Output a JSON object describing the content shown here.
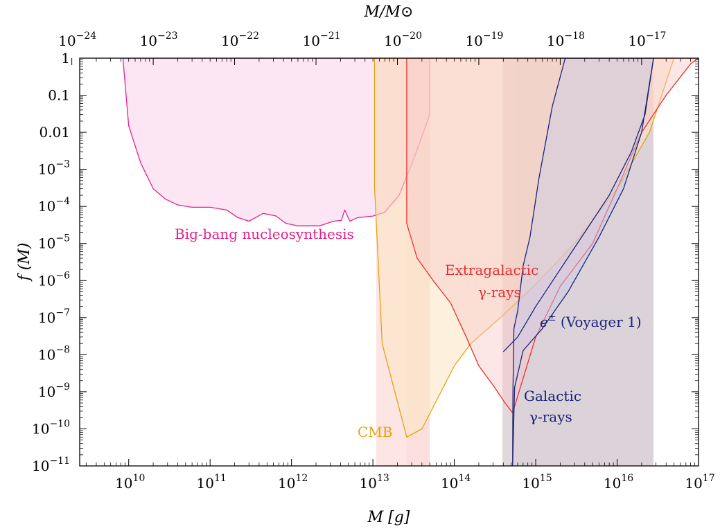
{
  "chart_data": {
    "type": "area",
    "title": "",
    "xlabel": "M [g]",
    "top_xlabel": "M/M⊙",
    "ylabel": "f (M)",
    "x_scale": "log",
    "y_scale": "log",
    "xlim": [
      2500000000.0,
      1e+17
    ],
    "ylim": [
      1e-11,
      1
    ],
    "grid": false,
    "x_ticks": [
      {
        "value": 10000000000.0,
        "base": "10",
        "exp": "10"
      },
      {
        "value": 100000000000.0,
        "base": "10",
        "exp": "11"
      },
      {
        "value": 1000000000000.0,
        "base": "10",
        "exp": "12"
      },
      {
        "value": 10000000000000.0,
        "base": "10",
        "exp": "13"
      },
      {
        "value": 100000000000000.0,
        "base": "10",
        "exp": "14"
      },
      {
        "value": 1000000000000000.0,
        "base": "10",
        "exp": "15"
      },
      {
        "value": 1e+16,
        "base": "10",
        "exp": "16"
      },
      {
        "value": 1e+17,
        "base": "10",
        "exp": "17"
      }
    ],
    "top_ticks": [
      {
        "value": 2000000000.0,
        "base": "10",
        "exp": "−24"
      },
      {
        "value": 20000000000.0,
        "base": "10",
        "exp": "−23"
      },
      {
        "value": 200000000000.0,
        "base": "10",
        "exp": "−22"
      },
      {
        "value": 2000000000000.0,
        "base": "10",
        "exp": "−21"
      },
      {
        "value": 20000000000000.0,
        "base": "10",
        "exp": "−20"
      },
      {
        "value": 200000000000000.0,
        "base": "10",
        "exp": "−19"
      },
      {
        "value": 2000000000000000.0,
        "base": "10",
        "exp": "−18"
      },
      {
        "value": 2e+16,
        "base": "10",
        "exp": "−17"
      }
    ],
    "y_ticks": [
      {
        "value": 1,
        "base": "1",
        "exp": ""
      },
      {
        "value": 0.1,
        "base": "0.1",
        "exp": ""
      },
      {
        "value": 0.01,
        "base": "0.01",
        "exp": ""
      },
      {
        "value": 0.001,
        "base": "10",
        "exp": "−3"
      },
      {
        "value": 0.0001,
        "base": "10",
        "exp": "−4"
      },
      {
        "value": 1e-05,
        "base": "10",
        "exp": "−5"
      },
      {
        "value": 1e-06,
        "base": "10",
        "exp": "−6"
      },
      {
        "value": 1e-07,
        "base": "10",
        "exp": "−7"
      },
      {
        "value": 1e-08,
        "base": "10",
        "exp": "−8"
      },
      {
        "value": 1e-09,
        "base": "10",
        "exp": "−9"
      },
      {
        "value": 1e-10,
        "base": "10",
        "exp": "−10"
      },
      {
        "value": 1e-11,
        "base": "10",
        "exp": "−11"
      }
    ],
    "bands": [
      {
        "x": [
          11000000000000.0,
          26000000000000.0
        ],
        "fill": "#f4a8a0",
        "opacity": 0.3
      },
      {
        "x": [
          26000000000000.0,
          50000000000000.0
        ],
        "fill": "#ee8c82",
        "opacity": 0.28
      },
      {
        "x": [
          390000000000000.0,
          530000000000000.0
        ],
        "fill": "#b89ea0",
        "opacity": 0.4
      },
      {
        "x": [
          530000000000000.0,
          2.8e+16
        ],
        "fill": "#8a6a82",
        "opacity": 0.3
      }
    ],
    "series": [
      {
        "name": "Big-bang nucleosynthesis",
        "color": "#e8208a",
        "fill": "#f9b8e0",
        "fill_opacity": 0.35,
        "points": [
          [
            8500000000.0,
            1
          ],
          [
            10000000000.0,
            0.015
          ],
          [
            14000000000.0,
            0.0015
          ],
          [
            20000000000.0,
            0.0003
          ],
          [
            28000000000.0,
            0.00016
          ],
          [
            40000000000.0,
            0.00011
          ],
          [
            60000000000.0,
            9.5e-05
          ],
          [
            100000000000.0,
            9.5e-05
          ],
          [
            160000000000.0,
            8e-05
          ],
          [
            220000000000.0,
            5e-05
          ],
          [
            300000000000.0,
            4e-05
          ],
          [
            450000000000.0,
            6.5e-05
          ],
          [
            650000000000.0,
            5.5e-05
          ],
          [
            850000000000.0,
            3.5e-05
          ],
          [
            1200000000000.0,
            3e-05
          ],
          [
            2200000000000.0,
            3e-05
          ],
          [
            3300000000000.0,
            4e-05
          ],
          [
            4100000000000.0,
            4.2e-05
          ],
          [
            4500000000000.0,
            8e-05
          ],
          [
            5200000000000.0,
            4e-05
          ],
          [
            6500000000000.0,
            5e-05
          ],
          [
            10000000000000.0,
            5.5e-05
          ],
          [
            14000000000000.0,
            7e-05
          ],
          [
            21000000000000.0,
            0.0002
          ],
          [
            32000000000000.0,
            0.002
          ],
          [
            50000000000000.0,
            0.03
          ],
          [
            50000000000000.0,
            1
          ],
          [
            8500000000.0,
            1
          ]
        ]
      },
      {
        "name": "CMB",
        "color": "#e8a010",
        "fill": "#fbe6c2",
        "fill_opacity": 0.55,
        "points": [
          [
            10500000000000.0,
            0.0003
          ],
          [
            13000000000000.0,
            2e-08
          ],
          [
            26000000000000.0,
            6e-11
          ],
          [
            40000000000000.0,
            1e-10
          ],
          [
            100000000000000.0,
            5e-09
          ],
          [
            160000000000000.0,
            2e-08
          ],
          [
            350000000000000.0,
            9e-08
          ],
          [
            1000000000000000.0,
            8e-07
          ],
          [
            3000000000000000.0,
            1e-05
          ],
          [
            1e+16,
            0.0003
          ],
          [
            2.5e+16,
            0.01
          ],
          [
            5e+16,
            1
          ],
          [
            10500000000000.0,
            1
          ]
        ]
      },
      {
        "name": "Extragalactic γ-rays",
        "color": "#e83030",
        "fill": "#f8c8c8",
        "fill_opacity": 0.45,
        "points": [
          [
            26000000000000.0,
            3.5e-05
          ],
          [
            35000000000000.0,
            4e-06
          ],
          [
            55000000000000.0,
            1e-06
          ],
          [
            90000000000000.0,
            2.5e-07
          ],
          [
            140000000000000.0,
            3e-08
          ],
          [
            200000000000000.0,
            5e-09
          ],
          [
            300000000000000.0,
            1.5e-09
          ],
          [
            420000000000000.0,
            5e-10
          ],
          [
            520000000000000.0,
            2.7e-10
          ],
          [
            1000000000000000.0,
            3e-08
          ],
          [
            2000000000000000.0,
            7e-07
          ],
          [
            5000000000000000.0,
            1e-05
          ],
          [
            1e+16,
            0.0003
          ],
          [
            2e+16,
            0.01
          ],
          [
            4e+16,
            0.1
          ],
          [
            8e+16,
            0.7
          ],
          [
            1e+17,
            1
          ],
          [
            26000000000000.0,
            1
          ]
        ]
      },
      {
        "name": "Galactic γ-rays",
        "color": "#1a2378",
        "fill": "#c8cce8",
        "fill_opacity": 0.45,
        "points": [
          [
            520000000000000.0,
            1e-11
          ],
          [
            525000000000000.0,
            1e-09
          ],
          [
            540000000000000.0,
            5e-08
          ],
          [
            600000000000000.0,
            1.5e-07
          ],
          [
            700000000000000.0,
            2.5e-06
          ],
          [
            850000000000000.0,
            1.5e-05
          ],
          [
            1100000000000000.0,
            0.0006
          ],
          [
            1600000000000000.0,
            0.05
          ],
          [
            2300000000000000.0,
            1
          ],
          [
            2.8e+16,
            1
          ],
          [
            2e+16,
            0.01
          ],
          [
            1.2e+16,
            0.0003
          ],
          [
            6000000000000000.0,
            1.5e-05
          ],
          [
            2500000000000000.0,
            5e-07
          ],
          [
            1200000000000000.0,
            5e-08
          ],
          [
            700000000000000.0,
            1.3e-08
          ],
          [
            550000000000000.0,
            1.3e-09
          ],
          [
            520000000000000.0,
            1e-11
          ]
        ]
      },
      {
        "name": "e± (Voyager 1)",
        "color": "#1a2378",
        "fill": "none",
        "fill_opacity": 0,
        "points": [
          [
            400000000000000.0,
            1.2e-08
          ],
          [
            600000000000000.0,
            3e-08
          ],
          [
            1000000000000000.0,
            2e-07
          ],
          [
            2000000000000000.0,
            2e-06
          ],
          [
            4000000000000000.0,
            2e-05
          ],
          [
            8000000000000000.0,
            0.0002
          ],
          [
            1.5e+16,
            0.003
          ],
          [
            2.2e+16,
            0.03
          ],
          [
            2.8e+16,
            1
          ]
        ]
      }
    ],
    "annotations": [
      {
        "text": "Big-bang nucleosynthesis",
        "color": "#e8208a"
      },
      {
        "text": "Extragalactic",
        "color": "#e83030"
      },
      {
        "text": "γ-rays",
        "color": "#e83030"
      },
      {
        "text": "CMB",
        "color": "#e8a010"
      },
      {
        "text": "e",
        "sup": "±",
        "rest": " (Voyager 1)",
        "color": "#1a2378"
      },
      {
        "text": "Galactic",
        "color": "#1a2378"
      },
      {
        "text": "γ-rays",
        "color": "#1a2378"
      }
    ]
  }
}
